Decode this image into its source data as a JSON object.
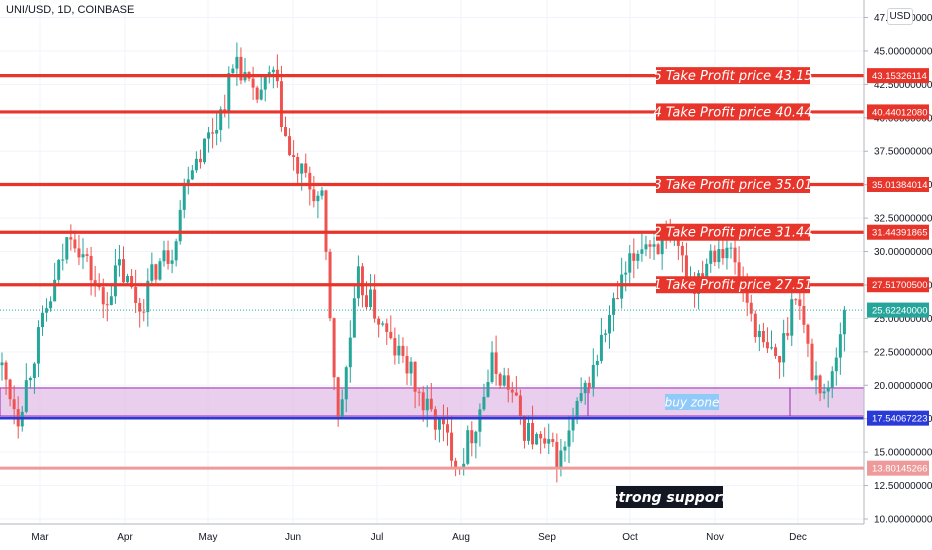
{
  "header": {
    "symbol_title": "UNI/USD, 1D, COINBASE",
    "currency_badge": "USD"
  },
  "colors": {
    "up": "#26a69a",
    "down": "#ef5350",
    "level_line": "#e8352b",
    "support_line": "#2a3ad6",
    "zone_fill": "#e1bee7",
    "zone_border": "#9c27b0",
    "last_price": "#26a69a",
    "grid": "#f0f3fa"
  },
  "chart_data": {
    "type": "candlestick",
    "title": "UNI/USD, 1D, COINBASE",
    "x_ticks": [
      "Mar",
      "Apr",
      "May",
      "Jun",
      "Jul",
      "Aug",
      "Sep",
      "Oct",
      "Nov",
      "Dec"
    ],
    "y_ticks": [
      "10.00000000",
      "12.50000000",
      "15.00000000",
      "17.50000000",
      "20.00000000",
      "22.50000000",
      "25.00000000",
      "27.50000000",
      "30.00000000",
      "32.50000000",
      "35.00000000",
      "37.50000000",
      "40.00000000",
      "42.50000000",
      "45.00000000",
      "47.50000000"
    ],
    "y_range": [
      10,
      47.5
    ],
    "close_path": [
      [
        0,
        21.2
      ],
      [
        4,
        17.8
      ],
      [
        8,
        22.5
      ],
      [
        13,
        27.5
      ],
      [
        17,
        31.8
      ],
      [
        21,
        29.0
      ],
      [
        25,
        26.1
      ],
      [
        29,
        28.8
      ],
      [
        34,
        25.8
      ],
      [
        38,
        28.8
      ],
      [
        42,
        30.2
      ],
      [
        46,
        36.3
      ],
      [
        50,
        38.0
      ],
      [
        54,
        40.4
      ],
      [
        58,
        44.6
      ],
      [
        62,
        41.2
      ],
      [
        67,
        43.2
      ],
      [
        71,
        37.0
      ],
      [
        75,
        35.2
      ],
      [
        79,
        33.5
      ],
      [
        83,
        17.0
      ],
      [
        88,
        27.8
      ],
      [
        92,
        25.6
      ],
      [
        96,
        23.0
      ],
      [
        100,
        21.5
      ],
      [
        104,
        18.5
      ],
      [
        108,
        17.0
      ],
      [
        113,
        14.2
      ],
      [
        117,
        17.3
      ],
      [
        121,
        21.5
      ],
      [
        125,
        20.0
      ],
      [
        129,
        16.8
      ],
      [
        133,
        15.5
      ],
      [
        138,
        14.5
      ],
      [
        142,
        18.0
      ],
      [
        146,
        21.3
      ],
      [
        150,
        25.0
      ],
      [
        154,
        28.2
      ],
      [
        158,
        30.8
      ],
      [
        163,
        30.6
      ],
      [
        167,
        29.7
      ],
      [
        171,
        27.6
      ],
      [
        175,
        30.2
      ],
      [
        179,
        30.6
      ],
      [
        183,
        27.2
      ],
      [
        188,
        22.6
      ],
      [
        192,
        21.9
      ],
      [
        196,
        27.5
      ],
      [
        200,
        21.0
      ],
      [
        204,
        19.3
      ],
      [
        208,
        25.6
      ]
    ],
    "levels": [
      {
        "label": "5 Take Profit price 43.15",
        "price_tag": "43.15326114",
        "value": 43.15326114
      },
      {
        "label": "4 Take Profit price 40.44",
        "price_tag": "40.44012080",
        "value": 40.4401208
      },
      {
        "label": "3 Take Profit price 35.01",
        "price_tag": "35.01384014",
        "value": 35.01384014
      },
      {
        "label": "2 Take Profit price 31.44",
        "price_tag": "31.44391865",
        "value": 31.44391865
      },
      {
        "label": "1 Take Profit price 27.51",
        "price_tag": "27.51700500",
        "value": 27.517005
      }
    ],
    "support_line": {
      "price_tag": "17.54067223",
      "value": 17.54067223
    },
    "strong_support_line": {
      "price_tag": "13.80145266",
      "value": 13.80145266
    },
    "buy_zone": {
      "label": "buy zone",
      "y_from": 17.7,
      "y_to": 19.8
    },
    "last_price": {
      "price_tag": "25.62240000",
      "value": 25.6224
    },
    "annotation": "strong support"
  }
}
